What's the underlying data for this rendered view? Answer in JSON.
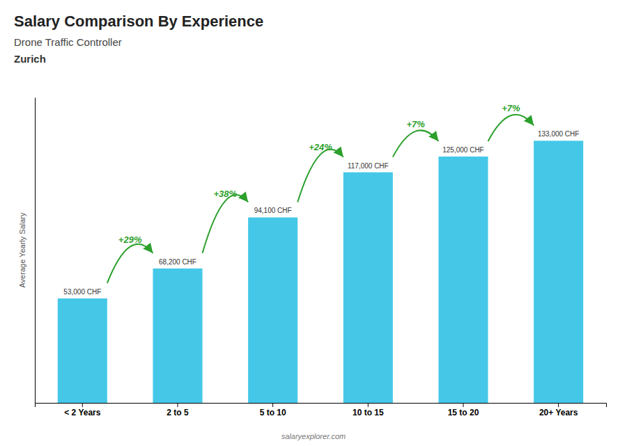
{
  "chart_data": {
    "type": "bar",
    "title": "Salary Comparison By Experience",
    "subtitle": [
      "Drone Traffic Controller",
      "Zurich"
    ],
    "ylabel": "Average Yearly Salary",
    "categories": [
      "< 2 Years",
      "2 to 5",
      "5 to 10",
      "10 to 15",
      "15 to 20",
      "20+ Years"
    ],
    "values": [
      53000,
      68200,
      94100,
      117000,
      125000,
      133000
    ],
    "value_labels": [
      "53,000 CHF",
      "68,200 CHF",
      "94,100 CHF",
      "117,000 CHF",
      "125,000 CHF",
      "133,000 CHF"
    ],
    "data_labels": true,
    "annotations": [
      "+29%",
      "+38%",
      "+24%",
      "+7%",
      "+7%"
    ],
    "caption": "salaryexplorer.com",
    "color": "#45C8E8",
    "ylim": [
      0,
      155000
    ],
    "tick_labels": "x",
    "grid": false
  }
}
